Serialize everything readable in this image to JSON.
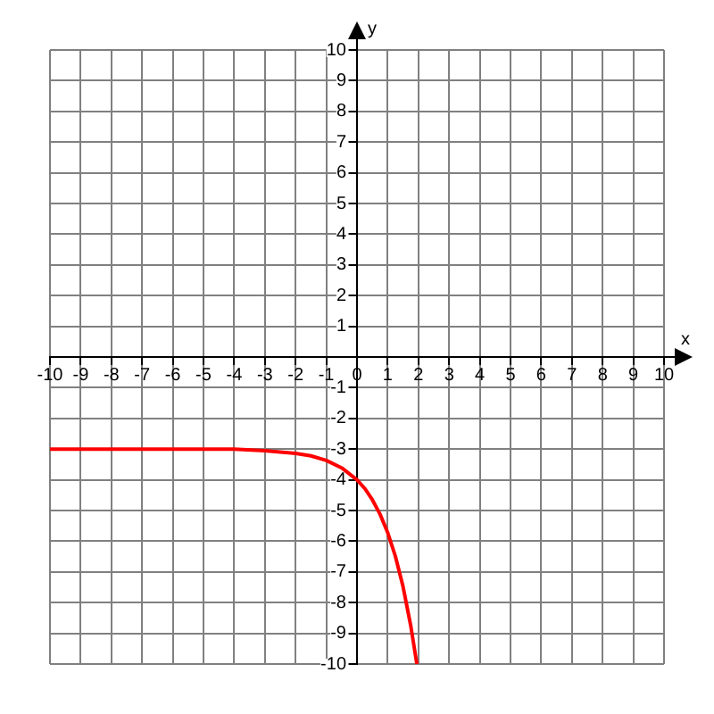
{
  "chart_data": {
    "type": "line",
    "xlabel": "x",
    "ylabel": "y",
    "x": [
      -10,
      -8,
      -6,
      -4,
      -3,
      -2,
      -1.5,
      -1,
      -0.5,
      0,
      0.25,
      0.5,
      0.75,
      1,
      1.25,
      1.5,
      1.75,
      1.95
    ],
    "series": [
      {
        "color": "#ff0000",
        "values": [
          -3,
          -3,
          -3,
          -3,
          -3.05,
          -3.14,
          -3.22,
          -3.37,
          -3.61,
          -4,
          -4.28,
          -4.65,
          -5.12,
          -5.72,
          -6.49,
          -7.48,
          -8.75,
          -10
        ]
      }
    ],
    "xlim": [
      -10,
      10
    ],
    "ylim": [
      -10,
      10
    ],
    "xticks": [
      -10,
      -9,
      -8,
      -7,
      -6,
      -5,
      -4,
      -3,
      -2,
      -1,
      0,
      1,
      2,
      3,
      4,
      5,
      6,
      7,
      8,
      9,
      10
    ],
    "yticks": [
      -10,
      -9,
      -8,
      -7,
      -6,
      -5,
      -4,
      -3,
      -2,
      -1,
      1,
      2,
      3,
      4,
      5,
      6,
      7,
      8,
      9,
      10
    ],
    "grid": true,
    "marker": "none",
    "line_style": "solid",
    "legend": false
  }
}
